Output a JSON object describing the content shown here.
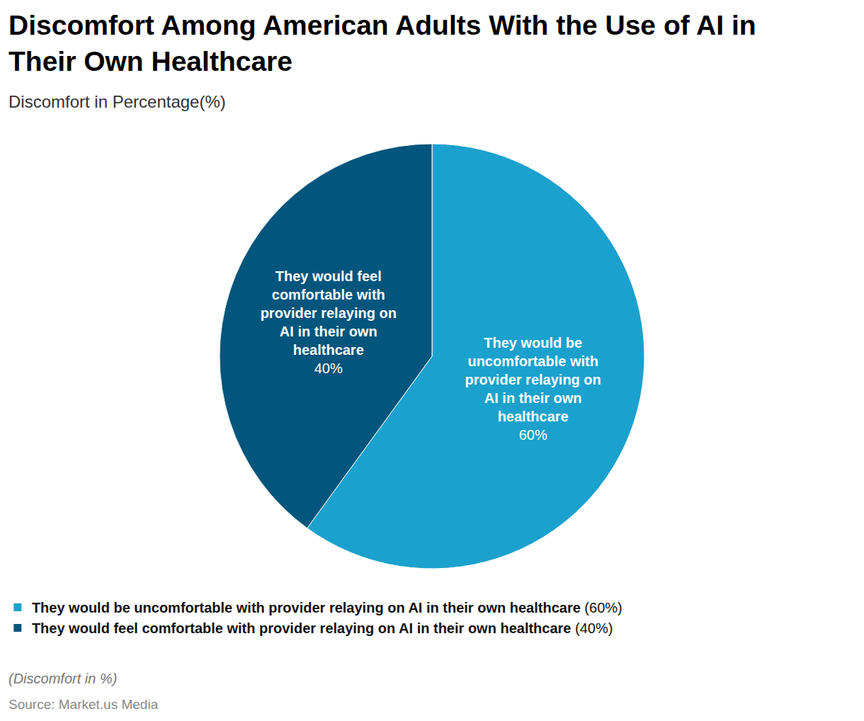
{
  "chart_data": {
    "type": "pie",
    "title": "Discomfort Among American Adults With the Use of AI in Their Own Healthcare",
    "subtitle": "Discomfort in Percentage(%)",
    "categories": [
      "They would be uncomfortable with provider relaying on AI in their own healthcare",
      "They would feel comfortable with provider relaying on AI in their own healthcare"
    ],
    "values": [
      60,
      40
    ],
    "value_labels": [
      "60%",
      "40%"
    ],
    "colors": [
      "#1ba1cd",
      "#02557c"
    ],
    "data_labels": true,
    "legend": "bottom left",
    "note": "(Discomfort in %)",
    "source": "Source: Market.us Media"
  }
}
